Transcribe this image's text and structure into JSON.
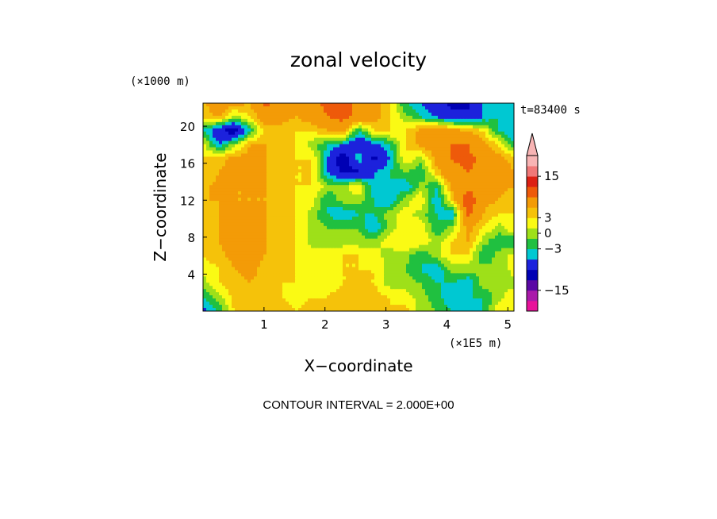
{
  "chart_data": {
    "type": "heatmap",
    "title": "zonal velocity",
    "time_label": "t=83400 s",
    "xlabel": "X−coordinate",
    "ylabel": "Z−coordinate",
    "x_unit": "(×1E5 m)",
    "y_unit": "(×1000 m)",
    "xlim": [
      0,
      5.1
    ],
    "ylim": [
      0,
      22.5
    ],
    "x_ticks": [
      1,
      2,
      3,
      4,
      5
    ],
    "x_tick_labels": [
      "1",
      "2",
      "3",
      "4",
      "5"
    ],
    "y_ticks": [
      4,
      8,
      12,
      16,
      20
    ],
    "y_tick_labels": [
      "4",
      "8",
      "12",
      "16",
      "20"
    ],
    "contour_interval_text": "CONTOUR INTERVAL = 2.000E+00",
    "colorbar": {
      "tick_values": [
        15,
        3,
        0,
        -3,
        -15
      ],
      "tick_labels": [
        "15",
        "3",
        "0",
        "−3",
        "−15"
      ],
      "levels": [
        -18,
        -15,
        -12,
        -9,
        -5,
        -3,
        -1,
        1,
        3,
        5,
        9,
        12,
        15,
        18
      ],
      "colors": [
        "#e8129a",
        "#aa1aaa",
        "#5a08a4",
        "#0000b4",
        "#1c22dc",
        "#00c8d2",
        "#20c040",
        "#9ee019",
        "#fafa14",
        "#f5c20a",
        "#f39b07",
        "#ee5a0a",
        "#dc2014",
        "#f07878",
        "#f8b4b4"
      ],
      "extend_top": true
    },
    "x": [
      0.0,
      0.26,
      0.51,
      0.77,
      1.02,
      1.28,
      1.53,
      1.79,
      2.04,
      2.3,
      2.55,
      2.81,
      3.06,
      3.32,
      3.57,
      3.83,
      4.08,
      4.34,
      4.59,
      4.85,
      5.1
    ],
    "z": [
      0.0,
      1.5,
      3.0,
      4.5,
      6.0,
      7.5,
      9.0,
      10.5,
      12.0,
      13.5,
      15.0,
      16.5,
      18.0,
      19.5,
      21.0,
      22.5
    ],
    "values": [
      [
        -6,
        -3,
        3,
        4,
        4,
        4,
        3,
        4,
        3,
        4,
        4,
        5,
        3,
        4,
        0,
        -1,
        -3,
        -5,
        -3,
        3,
        2
      ],
      [
        -3,
        0,
        4,
        5,
        4,
        3,
        2,
        3,
        3,
        4,
        3,
        4,
        3,
        2,
        0,
        -2,
        -5,
        -3,
        -3,
        0,
        3
      ],
      [
        0,
        3,
        4,
        5,
        4,
        3,
        3,
        2,
        2,
        3,
        3,
        3,
        0,
        0,
        -1,
        -3,
        -3,
        -5,
        0,
        0,
        0
      ],
      [
        2,
        3,
        5,
        6,
        4,
        4,
        3,
        2,
        2,
        3,
        3,
        3,
        0,
        -1,
        -3,
        -5,
        0,
        0,
        0,
        -1,
        2
      ],
      [
        3,
        4,
        6,
        6,
        5,
        4,
        3,
        2,
        2,
        3,
        3,
        2,
        0,
        0,
        -3,
        0,
        3,
        3,
        -3,
        0,
        2
      ],
      [
        4,
        5,
        7,
        6,
        5,
        4,
        3,
        0,
        0,
        0,
        0,
        0,
        2,
        3,
        3,
        0,
        3,
        5,
        0,
        -3,
        -3
      ],
      [
        4,
        5,
        6,
        6,
        5,
        3,
        3,
        0,
        -1,
        -1,
        -1,
        -5,
        0,
        2,
        3,
        -3,
        0,
        6,
        3,
        0,
        3
      ],
      [
        4,
        5,
        6,
        5,
        5,
        4,
        3,
        0,
        -3,
        -5,
        -3,
        -3,
        0,
        2,
        0,
        -3,
        -5,
        10,
        5,
        3,
        3
      ],
      [
        5,
        5,
        5,
        5,
        5,
        4,
        3,
        2,
        -3,
        0,
        0,
        -3,
        -5,
        0,
        3,
        -5,
        3,
        12,
        6,
        5,
        3
      ],
      [
        4,
        6,
        5,
        5,
        5,
        4,
        3,
        3,
        0,
        0,
        3,
        -5,
        -3,
        -5,
        0,
        -3,
        6,
        8,
        8,
        6,
        5
      ],
      [
        3,
        5,
        6,
        6,
        5,
        4,
        3,
        3,
        -5,
        -10,
        -10,
        -5,
        -3,
        -1,
        -3,
        4,
        8,
        9,
        8,
        7,
        5
      ],
      [
        3,
        4,
        6,
        6,
        5,
        4,
        3,
        3,
        -5,
        -12,
        -3,
        -10,
        -5,
        3,
        0,
        6,
        9,
        10,
        8,
        6,
        4
      ],
      [
        2,
        -5,
        0,
        5,
        5,
        4,
        3,
        0,
        -3,
        -5,
        -8,
        -6,
        -3,
        3,
        6,
        7,
        9,
        9,
        6,
        3,
        -3
      ],
      [
        -3,
        -8,
        -12,
        -3,
        4,
        4,
        3,
        3,
        5,
        7,
        -3,
        3,
        3,
        3,
        6,
        8,
        7,
        5,
        3,
        -3,
        -5
      ],
      [
        3,
        5,
        0,
        3,
        7,
        6,
        5,
        7,
        9,
        10,
        8,
        6,
        3,
        0,
        -3,
        -5,
        -8,
        -8,
        -5,
        -3,
        -5
      ],
      [
        4,
        9,
        6,
        5,
        10,
        8,
        6,
        8,
        10,
        10,
        8,
        7,
        3,
        -3,
        -5,
        -8,
        -10,
        -10,
        -5,
        -3,
        -5
      ]
    ]
  }
}
